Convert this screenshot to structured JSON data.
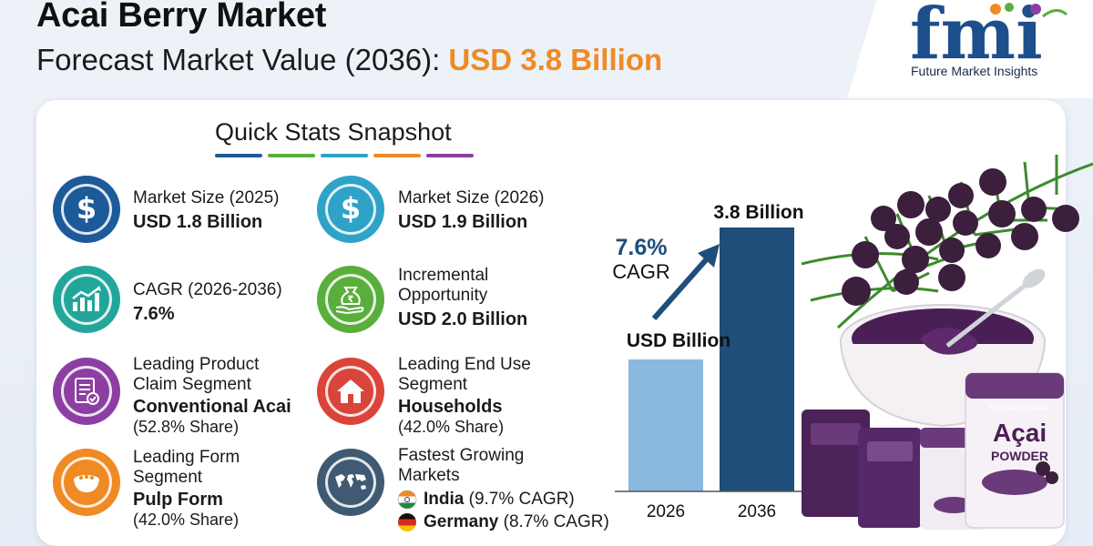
{
  "header": {
    "title": "Acai Berry Market",
    "subtitle_prefix": "Forecast Market Value (2036): ",
    "subtitle_value": "USD 3.8 Billion"
  },
  "logo": {
    "letters": "fmi",
    "company": "Future Market Insights"
  },
  "snapshot": {
    "title": "Quick Stats Snapshot",
    "bar_colors": [
      "#1d5a9a",
      "#5aae3c",
      "#2ea3c7",
      "#f08a24",
      "#8c3fa3"
    ]
  },
  "stats": {
    "market_size_2025": {
      "label": "Market Size (2025)",
      "value": "USD 1.8 Billion",
      "icon": "dollar-icon",
      "color": "#1d5a9a"
    },
    "market_size_2026": {
      "label": "Market Size (2026)",
      "value": "USD 1.9 Billion",
      "icon": "dollar-icon",
      "color": "#2ea3c7"
    },
    "cagr": {
      "label": "CAGR (2026-2036)",
      "value": "7.6%",
      "icon": "growth-chart-icon",
      "color": "#22a69a"
    },
    "incremental": {
      "label_line1": "Incremental",
      "label_line2": "Opportunity",
      "value": "USD 2.0 Billion",
      "icon": "money-bag-hand-icon",
      "color": "#5aae3c"
    },
    "product_claim": {
      "label_line1": "Leading Product",
      "label_line2": "Claim Segment",
      "value": "Conventional Acai",
      "share": "(52.8% Share)",
      "icon": "checklist-icon",
      "color": "#8c3fa3"
    },
    "end_use": {
      "label_line1": "Leading End Use",
      "label_line2": "Segment",
      "value": "Households",
      "share": "(42.0% Share)",
      "icon": "house-icon",
      "color": "#d9453a"
    },
    "form": {
      "label_line1": "Leading Form",
      "label_line2": "Segment",
      "value": "Pulp Form",
      "share": "(42.0% Share)",
      "icon": "acai-bowl-icon",
      "color": "#f08a24"
    },
    "growing": {
      "label_line1": "Fastest Growing",
      "label_line2": "Markets",
      "icon": "world-map-icon",
      "color": "#3f5a72",
      "markets": [
        {
          "name": "India",
          "cagr": "(9.7% CAGR)",
          "flag": "india-flag-icon"
        },
        {
          "name": "Germany",
          "cagr": "(8.7% CAGR)",
          "flag": "germany-flag-icon"
        }
      ]
    }
  },
  "chart_data": {
    "type": "bar",
    "categories": [
      "2026",
      "2036"
    ],
    "values": [
      1.9,
      3.8
    ],
    "value_labels": [
      "",
      "3.8 Billion"
    ],
    "unit_label": "USD Billion",
    "cagr_value": "7.6%",
    "cagr_label": "CAGR",
    "colors": [
      "#8ab8de",
      "#1f4e7a"
    ],
    "ylim": [
      0,
      3.8
    ]
  }
}
